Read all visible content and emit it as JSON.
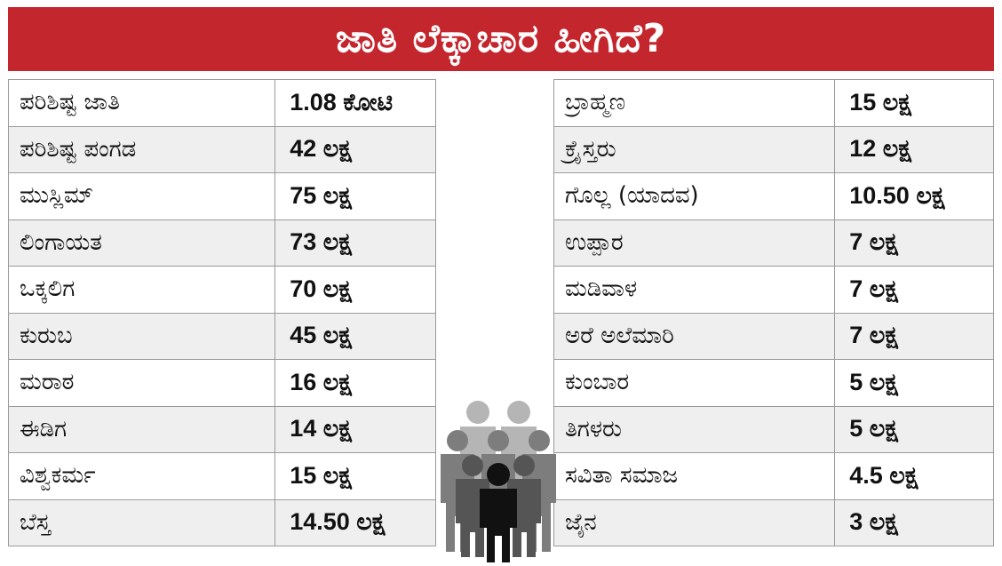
{
  "title": "ಜಾತಿ ಲೆಕ್ಕಾಚಾರ ಹೀಗಿದೆ?",
  "colors": {
    "banner": "#c4262e",
    "row_alt": "#efefef",
    "border": "#9a9a9a"
  },
  "icon": "people-crowd-icon",
  "left_table": [
    {
      "name": "ಪರಿಶಿಷ್ಟ ಜಾತಿ",
      "value": "1.08 ಕೋಟಿ"
    },
    {
      "name": "ಪರಿಶಿಷ್ಟ ಪಂಗಡ",
      "value": "42 ಲಕ್ಷ"
    },
    {
      "name": "ಮುಸ್ಲಿಮ್",
      "value": "75 ಲಕ್ಷ"
    },
    {
      "name": "ಲಿಂಗಾಯತ",
      "value": "73 ಲಕ್ಷ"
    },
    {
      "name": "ಒಕ್ಕಲಿಗ",
      "value": "70 ಲಕ್ಷ"
    },
    {
      "name": "ಕುರುಬ",
      "value": "45 ಲಕ್ಷ"
    },
    {
      "name": "ಮರಾಠ",
      "value": "16 ಲಕ್ಷ"
    },
    {
      "name": "ಈಡಿಗ",
      "value": "14 ಲಕ್ಷ"
    },
    {
      "name": "ವಿಶ್ವಕರ್ಮ",
      "value": "15 ಲಕ್ಷ"
    },
    {
      "name": "ಬೆಸ್ತ",
      "value": "14.50 ಲಕ್ಷ"
    }
  ],
  "right_table": [
    {
      "name": "ಬ್ರಾಹ್ಮಣ",
      "value": "15 ಲಕ್ಷ"
    },
    {
      "name": "ಕ್ರೈಸ್ತರು",
      "value": "12 ಲಕ್ಷ"
    },
    {
      "name": "ಗೊಲ್ಲ (ಯಾದವ)",
      "value": "10.50 ಲಕ್ಷ"
    },
    {
      "name": "ಉಪ್ಪಾರ",
      "value": "7 ಲಕ್ಷ"
    },
    {
      "name": "ಮಡಿವಾಳ",
      "value": "7 ಲಕ್ಷ"
    },
    {
      "name": "ಅರೆ ಅಲೆಮಾರಿ",
      "value": "7 ಲಕ್ಷ"
    },
    {
      "name": "ಕುಂಬಾರ",
      "value": "5 ಲಕ್ಷ"
    },
    {
      "name": "ತಿಗಳರು",
      "value": "5 ಲಕ್ಷ"
    },
    {
      "name": "ಸವಿತಾ ಸಮಾಜ",
      "value": "4.5 ಲಕ್ಷ"
    },
    {
      "name": "ಜೈನ",
      "value": "3 ಲಕ್ಷ"
    }
  ]
}
